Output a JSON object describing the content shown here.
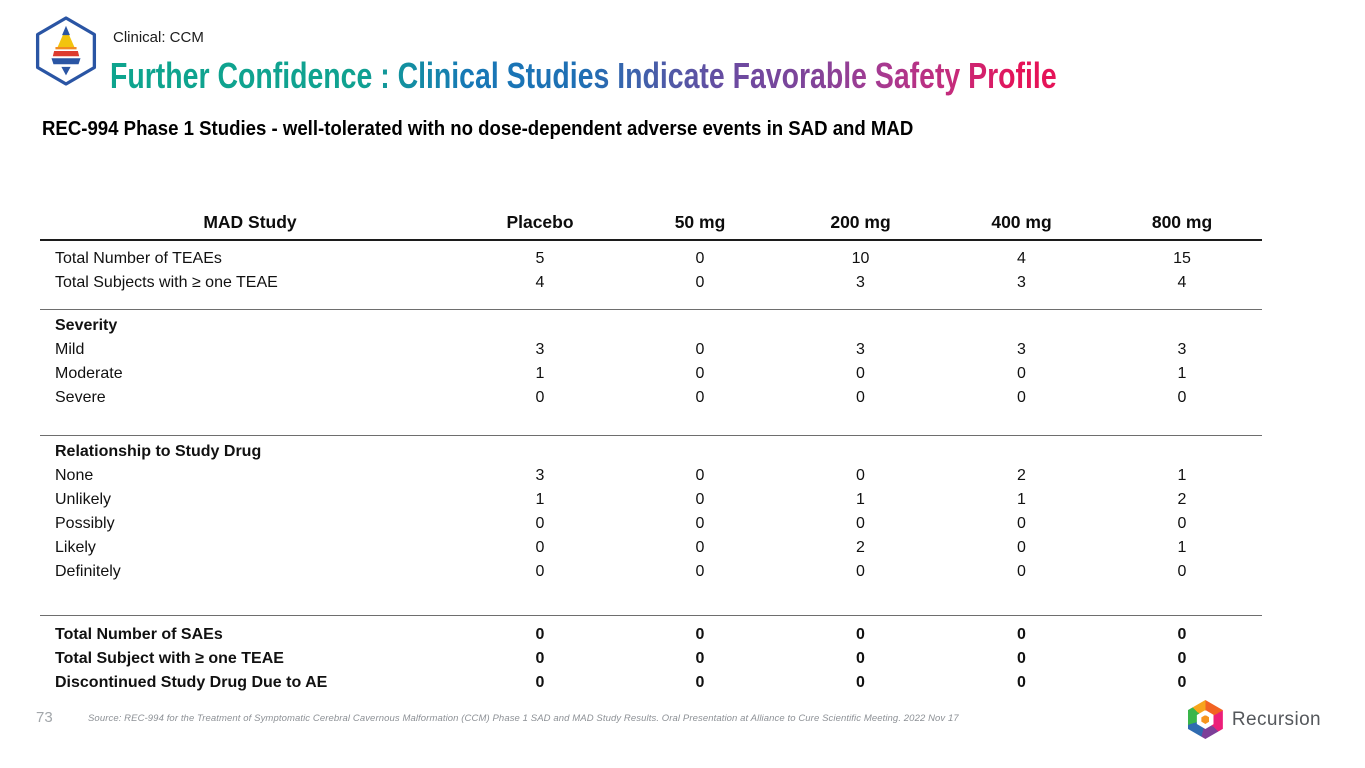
{
  "slide": {
    "eyebrow": "Clinical: CCM",
    "title": "Further Confidence : Clinical Studies Indicate Favorable Safety Profile",
    "subtitle": "REC-994 Phase 1 Studies - well-tolerated with no dose-dependent adverse events in SAD and MAD"
  },
  "table": {
    "columns": [
      "MAD Study",
      "Placebo",
      "50 mg",
      "200 mg",
      "400 mg",
      "800 mg"
    ],
    "sections": [
      {
        "heading": null,
        "rows": [
          {
            "label": "Total Number of TEAEs",
            "bold": false,
            "values": [
              "5",
              "0",
              "10",
              "4",
              "15"
            ]
          },
          {
            "label": "Total Subjects with ≥ one TEAE",
            "bold": false,
            "values": [
              "4",
              "0",
              "3",
              "3",
              "4"
            ]
          }
        ]
      },
      {
        "heading": "Severity",
        "rows": [
          {
            "label": "Mild",
            "bold": false,
            "values": [
              "3",
              "0",
              "3",
              "3",
              "3"
            ]
          },
          {
            "label": "Moderate",
            "bold": false,
            "values": [
              "1",
              "0",
              "0",
              "0",
              "1"
            ]
          },
          {
            "label": "Severe",
            "bold": false,
            "values": [
              "0",
              "0",
              "0",
              "0",
              "0"
            ]
          }
        ]
      },
      {
        "heading": "Relationship to Study Drug",
        "rows": [
          {
            "label": "None",
            "bold": false,
            "values": [
              "3",
              "0",
              "0",
              "2",
              "1"
            ]
          },
          {
            "label": "Unlikely",
            "bold": false,
            "values": [
              "1",
              "0",
              "1",
              "1",
              "2"
            ]
          },
          {
            "label": "Possibly",
            "bold": false,
            "values": [
              "0",
              "0",
              "0",
              "0",
              "0"
            ]
          },
          {
            "label": "Likely",
            "bold": false,
            "values": [
              "0",
              "0",
              "2",
              "0",
              "1"
            ]
          },
          {
            "label": "Definitely",
            "bold": false,
            "values": [
              "0",
              "0",
              "0",
              "0",
              "0"
            ]
          }
        ]
      },
      {
        "heading": null,
        "rows": [
          {
            "label": "Total Number of SAEs",
            "bold": true,
            "values": [
              "0",
              "0",
              "0",
              "0",
              "0"
            ]
          },
          {
            "label": "Total Subject with ≥ one TEAE",
            "bold": true,
            "values": [
              "0",
              "0",
              "0",
              "0",
              "0"
            ]
          },
          {
            "label": "Discontinued Study Drug Due to AE",
            "bold": true,
            "values": [
              "0",
              "0",
              "0",
              "0",
              "0"
            ]
          }
        ]
      }
    ]
  },
  "footer": {
    "page_number": "73",
    "source": "Source: REC-994 for the Treatment of Symptomatic Cerebral Cavernous Malformation (CCM) Phase 1 SAD and MAD Study Results. Oral Presentation at Alliance to Cure Scientific Meeting. 2022 Nov 17",
    "brand_name": "Recursion"
  },
  "icons": {
    "top_left": "hexagon-pyramid-icon",
    "bottom_right": "recursion-hexagon-icon"
  },
  "colors": {
    "title_gradient": [
      "#0EA48E",
      "#1F6FB4",
      "#6C4AA0",
      "#A43B92",
      "#E51358"
    ],
    "header_rule": "#1C1C1C",
    "section_rule": "#6E6E6E",
    "footer_gray": "#8D9196",
    "logo_blue": "#2A55A4",
    "logo_yellow": "#F2C40E",
    "logo_red": "#DD3B2F"
  }
}
